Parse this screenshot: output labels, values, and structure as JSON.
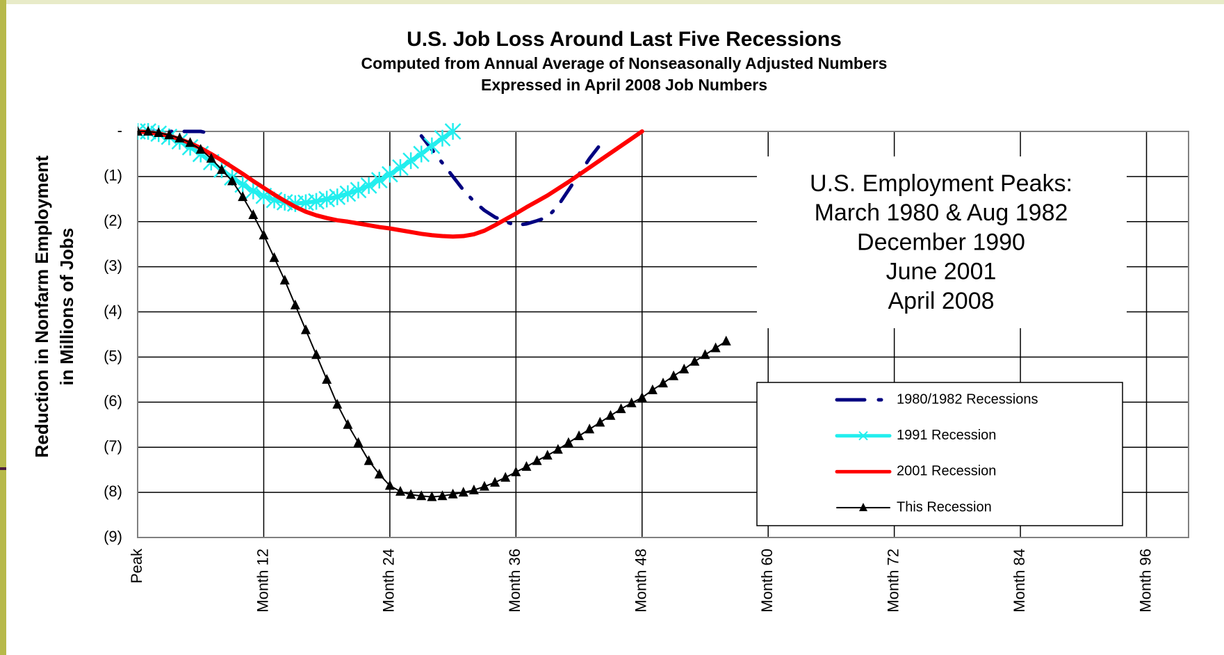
{
  "chart_data": {
    "type": "line",
    "title": "U.S. Job Loss Around Last Five Recessions",
    "subtitle": [
      "Computed from Annual Average of Nonseasonally Adjusted Numbers",
      "Expressed in April 2008 Job Numbers"
    ],
    "y_label": [
      "Reduction in Nonfarm Employment",
      "in Millions of Jobs"
    ],
    "annotation": [
      "U.S. Employment Peaks:",
      "March 1980 & Aug 1982",
      "December 1990",
      "June 2001",
      "April 2008"
    ],
    "x": [
      0,
      1,
      2,
      3,
      4,
      5,
      6,
      7,
      8,
      9,
      10,
      11,
      12,
      13,
      14,
      15,
      16,
      17,
      18,
      19,
      20,
      21,
      22,
      23,
      24,
      25,
      26,
      27,
      28,
      29,
      30,
      31,
      32,
      33,
      34,
      35,
      36,
      37,
      38,
      39,
      40,
      41,
      42,
      43,
      44,
      45,
      46,
      47,
      48,
      49,
      50,
      51,
      52,
      53,
      54,
      55,
      56
    ],
    "series": [
      {
        "name": "1980/1982 Recessions",
        "color": "#000080",
        "dash": "dashdot",
        "marker": "none",
        "values": [
          0,
          0,
          0,
          0,
          0,
          0,
          0,
          -0.05,
          null,
          null,
          null,
          null,
          null,
          null,
          null,
          null,
          null,
          null,
          null,
          null,
          null,
          null,
          null,
          null,
          null,
          null,
          null,
          -0.1,
          -0.4,
          -0.7,
          -1.0,
          -1.3,
          -1.55,
          -1.75,
          -1.9,
          -2.0,
          -2.08,
          -2.05,
          -1.98,
          -1.9,
          -1.65,
          -1.3,
          -0.95,
          -0.6,
          -0.3,
          null,
          null,
          null,
          null,
          null,
          null,
          null,
          null,
          null,
          null,
          null,
          null
        ]
      },
      {
        "name": "1991 Recession",
        "color": "#22eeee",
        "dash": "solid",
        "marker": "x",
        "values": [
          0,
          0,
          -0.05,
          -0.12,
          -0.22,
          -0.35,
          -0.5,
          -0.68,
          -0.85,
          -1.02,
          -1.18,
          -1.32,
          -1.43,
          -1.52,
          -1.57,
          -1.6,
          -1.58,
          -1.55,
          -1.5,
          -1.45,
          -1.38,
          -1.3,
          -1.2,
          -1.08,
          -0.95,
          -0.8,
          -0.65,
          -0.5,
          -0.32,
          -0.15,
          0,
          null,
          null,
          null,
          null,
          null,
          null,
          null,
          null,
          null,
          null,
          null,
          null,
          null,
          null,
          null,
          null,
          null,
          null,
          null,
          null,
          null,
          null,
          null,
          null,
          null,
          null
        ]
      },
      {
        "name": "2001 Recession",
        "color": "#ff0000",
        "dash": "solid",
        "marker": "none",
        "values": [
          0,
          -0.02,
          -0.05,
          -0.1,
          -0.17,
          -0.26,
          -0.37,
          -0.5,
          -0.64,
          -0.79,
          -0.94,
          -1.1,
          -1.25,
          -1.4,
          -1.54,
          -1.67,
          -1.78,
          -1.86,
          -1.92,
          -1.97,
          -2.0,
          -2.04,
          -2.08,
          -2.12,
          -2.15,
          -2.19,
          -2.23,
          -2.27,
          -2.3,
          -2.32,
          -2.33,
          -2.32,
          -2.28,
          -2.2,
          -2.08,
          -1.95,
          -1.82,
          -1.68,
          -1.55,
          -1.42,
          -1.27,
          -1.12,
          -0.96,
          -0.8,
          -0.64,
          -0.48,
          -0.32,
          -0.16,
          0,
          null,
          null,
          null,
          null,
          null,
          null,
          null,
          null
        ]
      },
      {
        "name": "This Recession",
        "color": "#000000",
        "dash": "solid",
        "marker": "triangle",
        "values": [
          0,
          0,
          -0.03,
          -0.08,
          -0.15,
          -0.25,
          -0.4,
          -0.6,
          -0.85,
          -1.1,
          -1.45,
          -1.85,
          -2.3,
          -2.8,
          -3.3,
          -3.85,
          -4.4,
          -4.95,
          -5.5,
          -6.05,
          -6.5,
          -6.9,
          -7.3,
          -7.6,
          -7.85,
          -7.98,
          -8.05,
          -8.08,
          -8.1,
          -8.08,
          -8.04,
          -8.0,
          -7.95,
          -7.87,
          -7.78,
          -7.67,
          -7.55,
          -7.43,
          -7.3,
          -7.18,
          -7.05,
          -6.9,
          -6.75,
          -6.6,
          -6.45,
          -6.3,
          -6.15,
          -6.02,
          -5.9,
          -5.73,
          -5.58,
          -5.42,
          -5.27,
          -5.1,
          -4.95,
          -4.8,
          -4.65
        ]
      }
    ],
    "xlim": [
      0,
      100
    ],
    "xticks": [
      {
        "value": 0,
        "label": "Peak"
      },
      {
        "value": 12,
        "label": "Month 12"
      },
      {
        "value": 24,
        "label": "Month 24"
      },
      {
        "value": 36,
        "label": "Month 36"
      },
      {
        "value": 48,
        "label": "Month 48"
      },
      {
        "value": 60,
        "label": "Month 60"
      },
      {
        "value": 72,
        "label": "Month 72"
      },
      {
        "value": 84,
        "label": "Month 84"
      },
      {
        "value": 96,
        "label": "Month 96"
      }
    ],
    "ylim": [
      -9,
      0
    ],
    "yticks": [
      {
        "value": 0,
        "label": "-"
      },
      {
        "value": -1,
        "label": "(1)"
      },
      {
        "value": -2,
        "label": "(2)"
      },
      {
        "value": -3,
        "label": "(3)"
      },
      {
        "value": -4,
        "label": "(4)"
      },
      {
        "value": -5,
        "label": "(5)"
      },
      {
        "value": -6,
        "label": "(6)"
      },
      {
        "value": -7,
        "label": "(7)"
      },
      {
        "value": -8,
        "label": "(8)"
      },
      {
        "value": -9,
        "label": "(9)"
      }
    ],
    "grid": true
  }
}
